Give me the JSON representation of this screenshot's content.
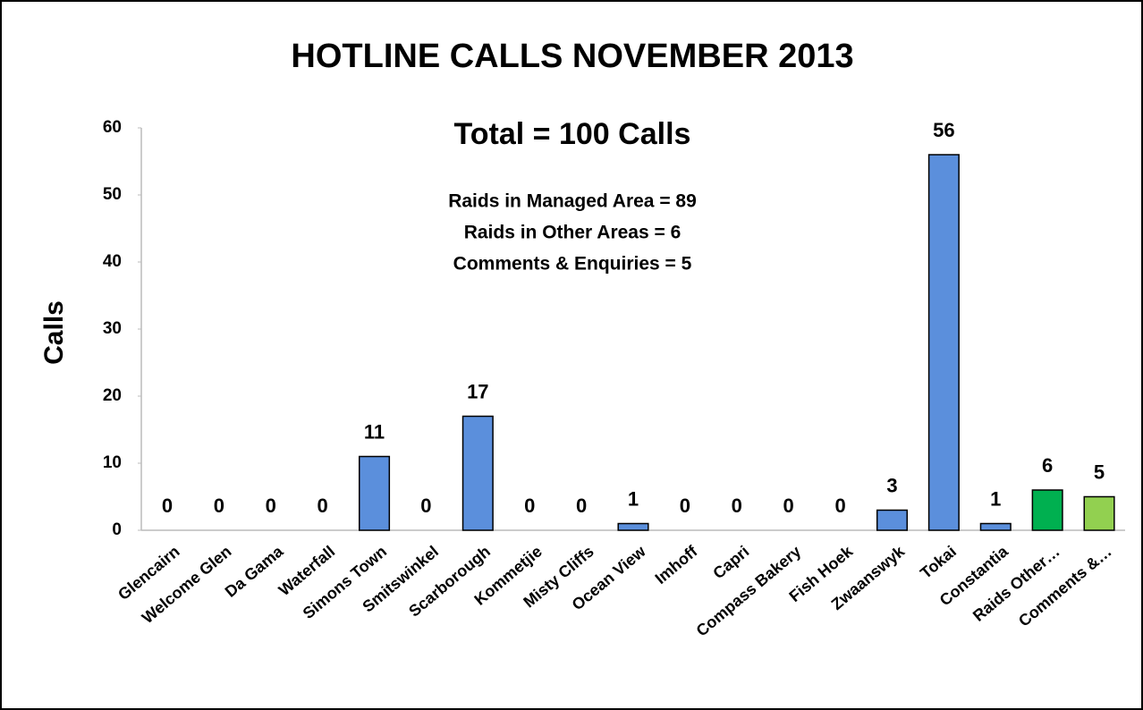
{
  "chart_data": {
    "type": "bar",
    "title": "HOTLINE CALLS NOVEMBER 2013",
    "y_label": "Calls",
    "annotations": [
      "Total = 100 Calls",
      "Raids in Managed Area = 89",
      "Raids in Other Areas =  6",
      "Comments & Enquiries =  5"
    ],
    "categories": [
      "Glencairn",
      "Welcome Glen",
      "Da Gama",
      "Waterfall",
      "Simons Town",
      "Smitswinkel",
      "Scarborough",
      "Kommetjie",
      "Misty Cliffs",
      "Ocean View",
      "Imhoff",
      "Capri",
      "Compass Bakery",
      "Fish Hoek",
      "Zwaanswyk",
      "Tokai",
      "Constantia",
      "Raids Other…",
      "Comments &…"
    ],
    "values": [
      0,
      0,
      0,
      0,
      11,
      0,
      17,
      0,
      0,
      1,
      0,
      0,
      0,
      0,
      3,
      56,
      1,
      6,
      5
    ],
    "colors": [
      "#5b8fdc",
      "#5b8fdc",
      "#5b8fdc",
      "#5b8fdc",
      "#5b8fdc",
      "#5b8fdc",
      "#5b8fdc",
      "#5b8fdc",
      "#5b8fdc",
      "#5b8fdc",
      "#5b8fdc",
      "#5b8fdc",
      "#5b8fdc",
      "#5b8fdc",
      "#5b8fdc",
      "#5b8fdc",
      "#5b8fdc",
      "#00b050",
      "#92d050"
    ],
    "ylim": [
      0,
      60
    ],
    "yticks": [
      0,
      10,
      20,
      30,
      40,
      50,
      60
    ],
    "grid": false
  }
}
